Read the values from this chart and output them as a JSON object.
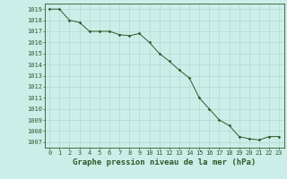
{
  "x": [
    0,
    1,
    2,
    3,
    4,
    5,
    6,
    7,
    8,
    9,
    10,
    11,
    12,
    13,
    14,
    15,
    16,
    17,
    18,
    19,
    20,
    21,
    22,
    23
  ],
  "y": [
    1019,
    1019,
    1018,
    1017.8,
    1017,
    1017,
    1017,
    1016.7,
    1016.6,
    1016.8,
    1016,
    1015,
    1014.3,
    1013.5,
    1012.8,
    1011,
    1010,
    1009,
    1008.5,
    1007.5,
    1007.3,
    1007.2,
    1007.5,
    1007.5
  ],
  "line_color": "#2d5a2d",
  "marker": "D",
  "marker_size": 1.8,
  "bg_color": "#cceee8",
  "grid_color": "#aad4cc",
  "title": "Graphe pression niveau de la mer (hPa)",
  "ylim": [
    1006.5,
    1019.5
  ],
  "xlim": [
    -0.5,
    23.5
  ],
  "yticks": [
    1007,
    1008,
    1009,
    1010,
    1011,
    1012,
    1013,
    1014,
    1015,
    1016,
    1017,
    1018,
    1019
  ],
  "xticks": [
    0,
    1,
    2,
    3,
    4,
    5,
    6,
    7,
    8,
    9,
    10,
    11,
    12,
    13,
    14,
    15,
    16,
    17,
    18,
    19,
    20,
    21,
    22,
    23
  ],
  "title_fontsize": 6.5,
  "tick_fontsize": 5.0
}
